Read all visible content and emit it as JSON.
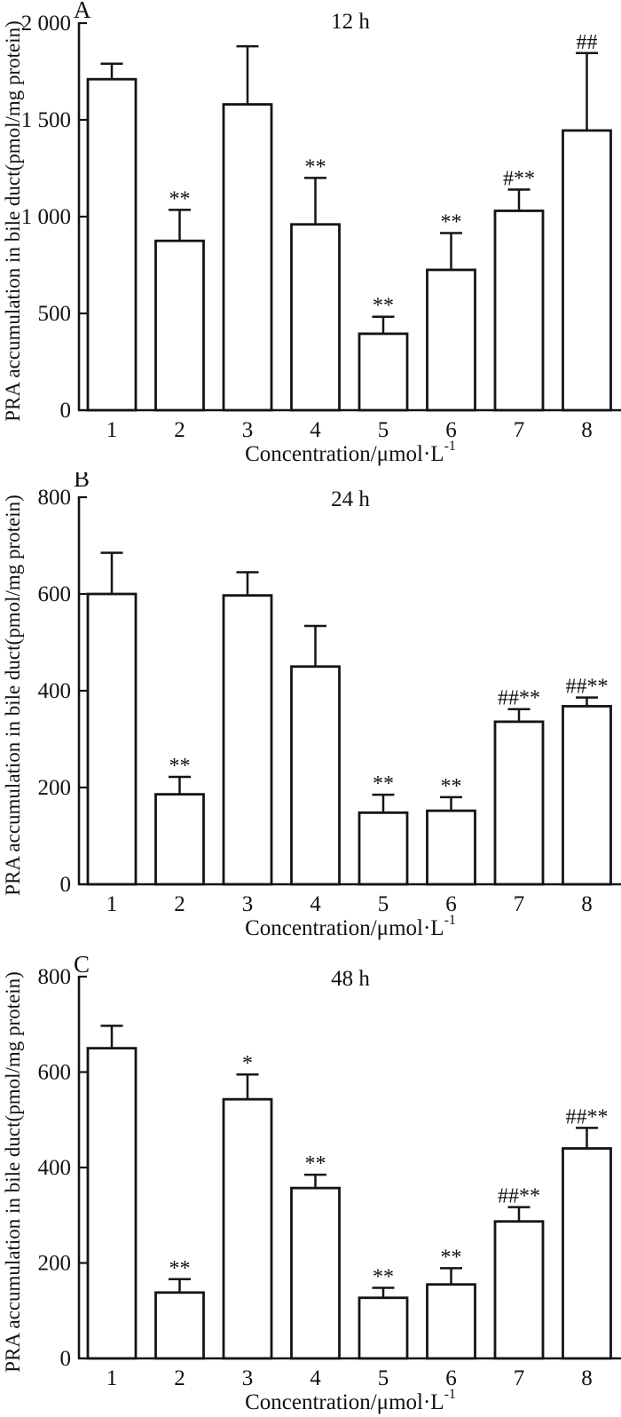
{
  "figure": {
    "description": "Three stacked bar charts of PRA accumulation in bile duct at three time points",
    "colors": {
      "bar_fill": "#ffffff",
      "stroke": "#141414",
      "background": "#ffffff"
    }
  },
  "chart_data": [
    {
      "type": "bar",
      "panel": "A",
      "title": "12 h",
      "categories": [
        "1",
        "2",
        "3",
        "4",
        "5",
        "6",
        "7",
        "8"
      ],
      "values": [
        1710,
        875,
        1580,
        960,
        395,
        725,
        1030,
        1445
      ],
      "errors_plus": [
        80,
        160,
        300,
        240,
        88,
        190,
        110,
        400
      ],
      "significance": [
        "",
        "**",
        "",
        "**",
        "**",
        "**",
        "#**",
        "##"
      ],
      "ylim": [
        0,
        2000
      ],
      "yticks": [
        0,
        500,
        1000,
        1500,
        2000
      ],
      "ytick_labels": [
        "0",
        "500",
        "1 000",
        "1 500",
        "2 000"
      ],
      "xlabel": "Concentration/μmol·L",
      "xlabel_sup": "-1",
      "ylabel": "PRA accumulation in bile duct(pmol/mg protein)",
      "grid": false,
      "legend": null
    },
    {
      "type": "bar",
      "panel": "B",
      "title": "24 h",
      "categories": [
        "1",
        "2",
        "3",
        "4",
        "5",
        "6",
        "7",
        "8"
      ],
      "values": [
        600,
        186,
        597,
        450,
        148,
        152,
        336,
        368
      ],
      "errors_plus": [
        85,
        36,
        48,
        84,
        37,
        28,
        26,
        18
      ],
      "significance": [
        "",
        "**",
        "",
        "",
        "**",
        "**",
        "##**",
        "##**"
      ],
      "ylim": [
        0,
        800
      ],
      "yticks": [
        0,
        200,
        400,
        600,
        800
      ],
      "ytick_labels": [
        "0",
        "200",
        "400",
        "600",
        "800"
      ],
      "xlabel": "Concentration/μmol·L",
      "xlabel_sup": "-1",
      "ylabel": "PRA accumulation in bile duct(pmol/mg protein)",
      "grid": false,
      "legend": null
    },
    {
      "type": "bar",
      "panel": "C",
      "title": "48 h",
      "categories": [
        "1",
        "2",
        "3",
        "4",
        "5",
        "6",
        "7",
        "8"
      ],
      "values": [
        650,
        138,
        543,
        357,
        127,
        155,
        287,
        440
      ],
      "errors_plus": [
        47,
        28,
        52,
        28,
        21,
        34,
        30,
        43
      ],
      "significance": [
        "",
        "**",
        "*",
        "**",
        "**",
        "**",
        "##**",
        "##**"
      ],
      "ylim": [
        0,
        800
      ],
      "yticks": [
        0,
        200,
        400,
        600,
        800
      ],
      "ytick_labels": [
        "0",
        "200",
        "400",
        "600",
        "800"
      ],
      "xlabel": "Concentration/μmol·L",
      "xlabel_sup": "-1",
      "ylabel": "PRA accumulation in bile duct(pmol/mg protein)",
      "grid": false,
      "legend": null
    }
  ]
}
